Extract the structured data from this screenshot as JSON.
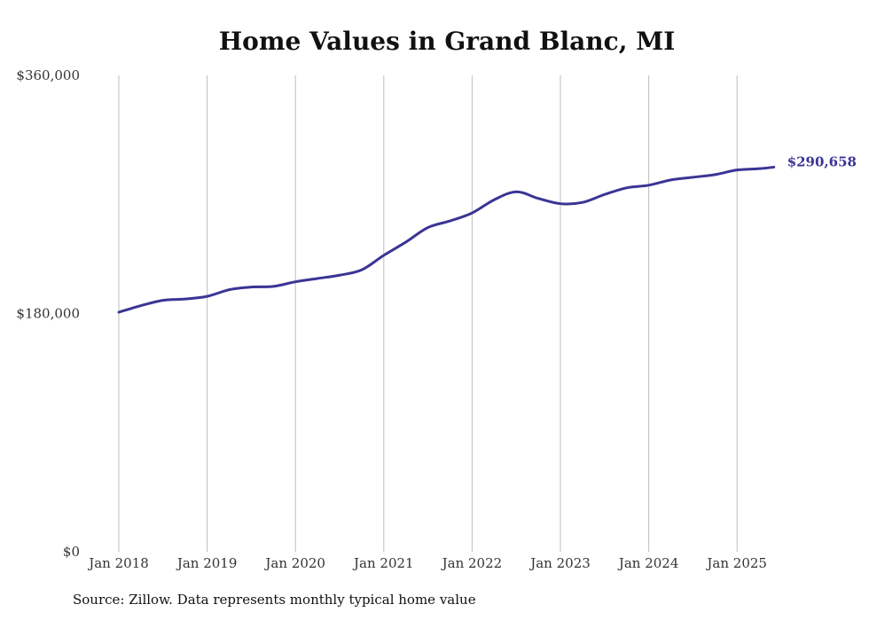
{
  "chart_data": {
    "type": "line",
    "title": "Home Values in Grand Blanc, MI",
    "xlabel": "",
    "ylabel": "",
    "ylim": [
      0,
      360000
    ],
    "y_ticks": [
      0,
      180000,
      360000
    ],
    "y_tick_labels": [
      "$0",
      "$180,000",
      "$360,000"
    ],
    "x_ticks": [
      "2018-01",
      "2019-01",
      "2020-01",
      "2021-01",
      "2022-01",
      "2023-01",
      "2024-01",
      "2025-01"
    ],
    "x_tick_labels": [
      "Jan 2018",
      "Jan 2019",
      "Jan 2020",
      "Jan 2021",
      "Jan 2022",
      "Jan 2023",
      "Jan 2024",
      "Jan 2025"
    ],
    "grid": "vertical",
    "line_color": "#3a3594",
    "end_label": "$290,658",
    "series": [
      {
        "x": [
          "2018-01",
          "2018-04",
          "2018-07",
          "2018-10",
          "2019-01",
          "2019-04",
          "2019-07",
          "2019-10",
          "2020-01",
          "2020-04",
          "2020-07",
          "2020-10",
          "2021-01",
          "2021-04",
          "2021-07",
          "2021-10",
          "2022-01",
          "2022-04",
          "2022-07",
          "2022-10",
          "2023-01",
          "2023-04",
          "2023-07",
          "2023-10",
          "2024-01",
          "2024-04",
          "2024-07",
          "2024-10",
          "2025-01",
          "2025-04",
          "2025-06"
        ],
        "values": [
          181000,
          186000,
          190000,
          191000,
          193000,
          198000,
          200000,
          200500,
          204000,
          206500,
          209000,
          213000,
          224000,
          234000,
          245000,
          250000,
          256000,
          266000,
          272000,
          267000,
          263000,
          264000,
          270000,
          275000,
          277000,
          281000,
          283000,
          285000,
          288500,
          289500,
          290658
        ]
      }
    ]
  },
  "source_note": "Source: Zillow. Data represents monthly typical home value"
}
